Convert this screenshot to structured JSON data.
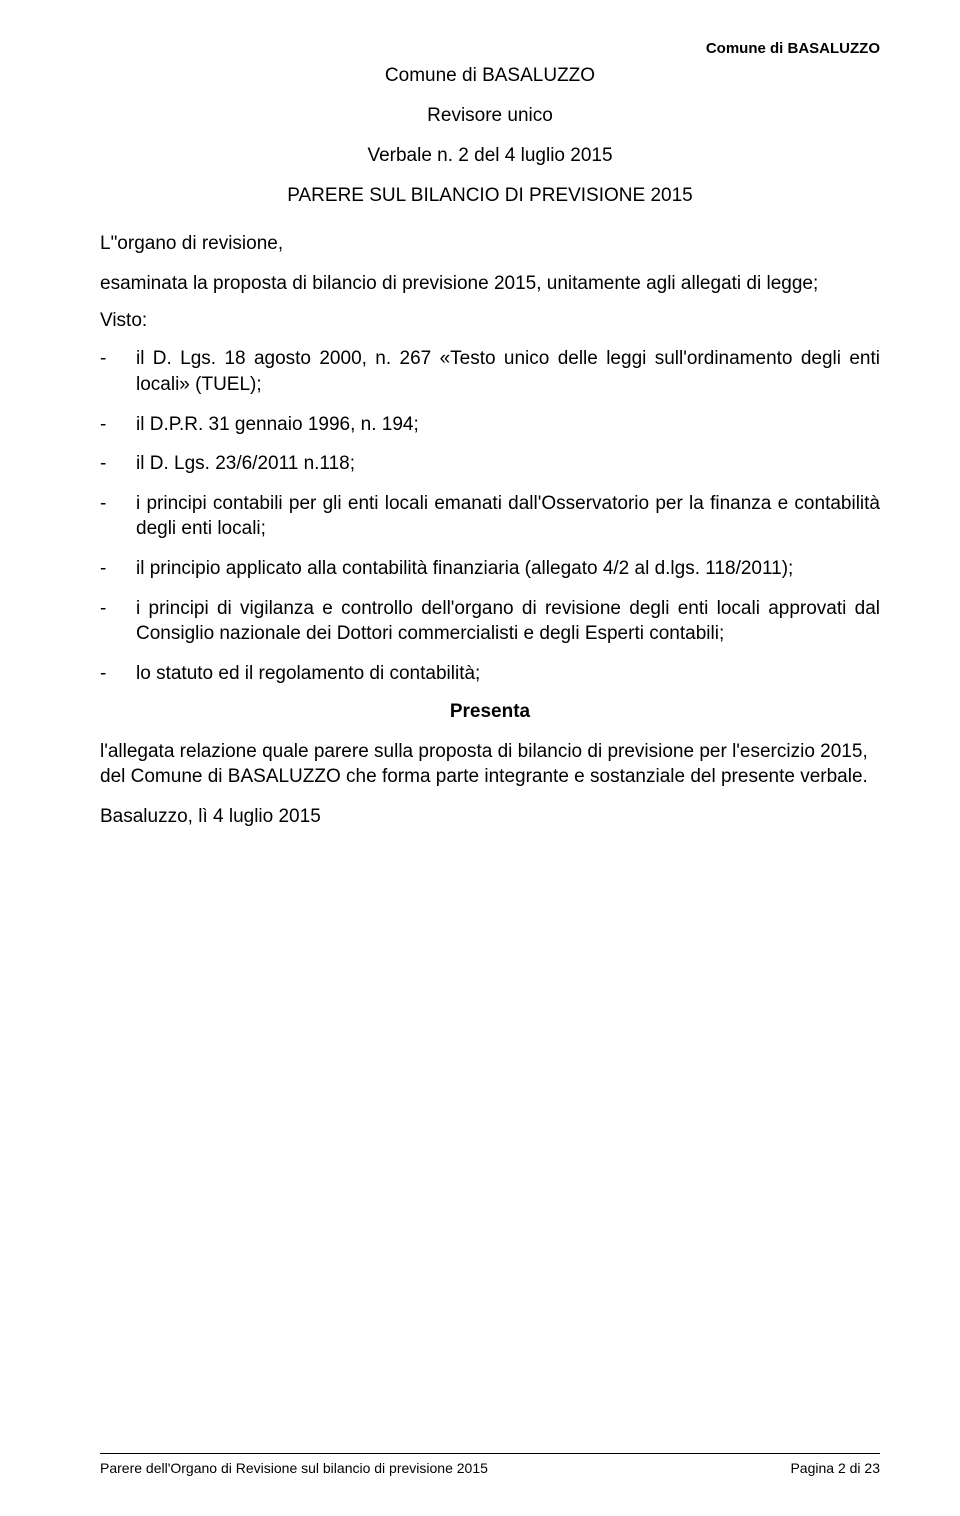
{
  "header": {
    "right_title": "Comune di BASALUZZO",
    "center_title": "Comune di BASALUZZO",
    "subtitle": "Revisore unico",
    "verbale": "Verbale n. 2 del 4 luglio 2015",
    "parere": "PARERE SUL BILANCIO DI PREVISIONE 2015"
  },
  "intro": {
    "line1": "L\"organo di revisione,",
    "line2": "esaminata la proposta di bilancio di previsione 2015, unitamente agli allegati di legge;",
    "visto": "Visto:"
  },
  "bullets": [
    "il D. Lgs. 18 agosto 2000, n. 267 «Testo unico delle leggi sull'ordinamento degli enti locali» (TUEL);",
    "il D.P.R. 31 gennaio 1996, n. 194;",
    "il D. Lgs. 23/6/2011 n.118;",
    "i principi contabili per gli enti locali emanati dall'Osservatorio per la finanza e contabilità degli enti locali;",
    "il principio applicato alla contabilità finanziaria (allegato 4/2 al d.lgs. 118/2011);",
    "i principi di vigilanza e controllo dell'organo di revisione degli enti locali approvati dal Consiglio nazionale dei Dottori commercialisti e degli Esperti contabili;",
    "lo statuto ed il regolamento di contabilità;"
  ],
  "presenta": "Presenta",
  "closing": {
    "para": "l'allegata relazione quale parere sulla proposta di bilancio di previsione per l'esercizio 2015, del Comune di BASALUZZO che forma parte integrante e sostanziale del presente verbale.",
    "place_date": "Basaluzzo, lì 4  luglio 2015"
  },
  "footer": {
    "left": "Parere dell'Organo di Revisione sul bilancio di previsione 2015",
    "right": "Pagina 2 di 23"
  }
}
